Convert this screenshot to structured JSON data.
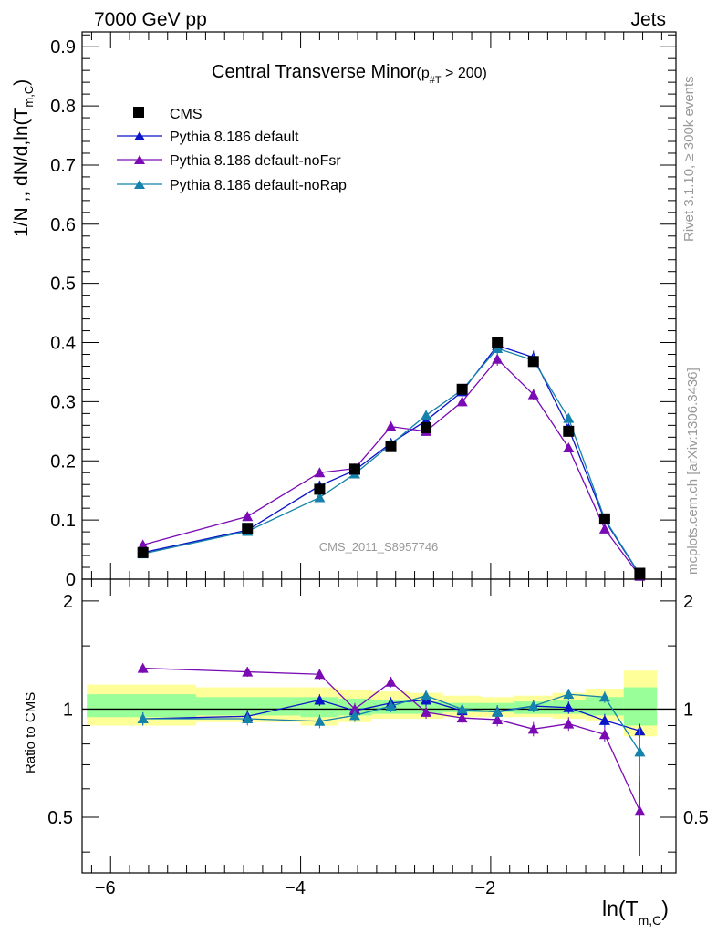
{
  "header": {
    "left": "7000 GeV pp",
    "right": "Jets"
  },
  "side_labels": {
    "rivet": "Rivet 3.1.10, ≥ 300k events",
    "mcplots": "mcplots.cern.ch [arXiv:1306.3436]"
  },
  "watermark": "CMS_2011_S8957746",
  "colors": {
    "cms": "#000000",
    "default": "#0a14c8",
    "noFsr": "#7a0ab4",
    "noRap": "#1482aa",
    "band_outer": "#ffff99",
    "band_inner": "#99ff99"
  },
  "chart_data": [
    {
      "type": "line",
      "title": "Central Transverse Minor",
      "title_suffix": "(p",
      "title_sub": "#T",
      "title_cut": " > 200)",
      "ylabel": "1/N ,, dN/d,ln(T",
      "ylabel_sub": "m,C",
      "ylabel_close": ")",
      "xlim": [
        -6.3,
        -0.05
      ],
      "ylim": [
        0,
        0.925
      ],
      "yticks": [
        "0.9",
        "0.8",
        "0.7",
        "0.6",
        "0.5",
        "0.4",
        "0.3",
        "0.2",
        "0.1",
        "0"
      ],
      "legend_position": "top-left",
      "legend": [
        "CMS",
        "Pythia 8.186 default",
        "Pythia 8.186 default-noFsr",
        "Pythia 8.186 default-noRap"
      ],
      "x": [
        -5.66,
        -4.56,
        -3.8,
        -3.43,
        -3.05,
        -2.68,
        -2.3,
        -1.93,
        -1.55,
        -1.18,
        -0.8,
        -0.43
      ],
      "cms": [
        0.045,
        0.086,
        0.152,
        0.186,
        0.224,
        0.256,
        0.321,
        0.4,
        0.368,
        0.25,
        0.102,
        0.01
      ],
      "series": [
        {
          "name": "Pythia 8.186 default",
          "values": [
            0.045,
            0.083,
            0.158,
            0.184,
            0.23,
            0.268,
            0.317,
            0.395,
            0.375,
            0.255,
            0.1,
            0.007
          ]
        },
        {
          "name": "Pythia 8.186 default-noFsr",
          "values": [
            0.058,
            0.106,
            0.18,
            0.187,
            0.258,
            0.25,
            0.3,
            0.372,
            0.312,
            0.222,
            0.085,
            0.005
          ]
        },
        {
          "name": "Pythia 8.186 default-noRap",
          "values": [
            0.043,
            0.081,
            0.138,
            0.178,
            0.228,
            0.277,
            0.32,
            0.39,
            0.37,
            0.272,
            0.102,
            0.008
          ]
        }
      ]
    },
    {
      "type": "line",
      "ylabel": "Ratio to CMS",
      "xlabel": "ln(T",
      "xlabel_sub": "m,C",
      "xlabel_close": ")",
      "xlim": [
        -6.3,
        -0.05
      ],
      "ylim": [
        0.35,
        2.3
      ],
      "yscale": "log",
      "yticks": [
        "2",
        "1",
        "0.5"
      ],
      "xticks": [
        "−6",
        "−4",
        "−2"
      ],
      "xtick_values": [
        -6,
        -4,
        -2
      ],
      "reference_line": 1,
      "bins": [
        -6.25,
        -5.1,
        -4.0,
        -3.6,
        -3.25,
        -2.85,
        -2.5,
        -2.1,
        -1.75,
        -1.35,
        -1.0,
        -0.6,
        -0.25
      ],
      "band_outer": [
        [
          0.9,
          1.17
        ],
        [
          0.92,
          1.15
        ],
        [
          0.9,
          1.15
        ],
        [
          0.92,
          1.13
        ],
        [
          0.94,
          1.12
        ],
        [
          0.94,
          1.11
        ],
        [
          0.95,
          1.09
        ],
        [
          0.95,
          1.08
        ],
        [
          0.95,
          1.09
        ],
        [
          0.94,
          1.11
        ],
        [
          0.93,
          1.14
        ],
        [
          0.84,
          1.28
        ]
      ],
      "band_inner": [
        [
          0.95,
          1.1
        ],
        [
          0.96,
          1.08
        ],
        [
          0.95,
          1.08
        ],
        [
          0.96,
          1.07
        ],
        [
          0.97,
          1.06
        ],
        [
          0.97,
          1.05
        ],
        [
          0.98,
          1.04
        ],
        [
          0.98,
          1.04
        ],
        [
          0.97,
          1.05
        ],
        [
          0.97,
          1.06
        ],
        [
          0.96,
          1.08
        ],
        [
          0.9,
          1.15
        ]
      ],
      "x": [
        -5.66,
        -4.56,
        -3.8,
        -3.43,
        -3.05,
        -2.68,
        -2.3,
        -1.93,
        -1.55,
        -1.18,
        -0.8,
        -0.43
      ],
      "series": [
        {
          "name": "Pythia 8.186 default",
          "values": [
            0.94,
            0.955,
            1.06,
            0.99,
            1.04,
            1.06,
            0.99,
            0.985,
            1.02,
            1.01,
            0.93,
            0.87
          ]
        },
        {
          "name": "Pythia 8.186 default-noFsr",
          "values": [
            1.3,
            1.27,
            1.25,
            1.0,
            1.19,
            0.98,
            0.945,
            0.935,
            0.88,
            0.91,
            0.85,
            0.52
          ]
        },
        {
          "name": "Pythia 8.186 default-noRap",
          "values": [
            0.94,
            0.94,
            0.925,
            0.96,
            1.02,
            1.09,
            1.0,
            0.98,
            1.02,
            1.1,
            1.08,
            0.76
          ]
        }
      ]
    }
  ]
}
